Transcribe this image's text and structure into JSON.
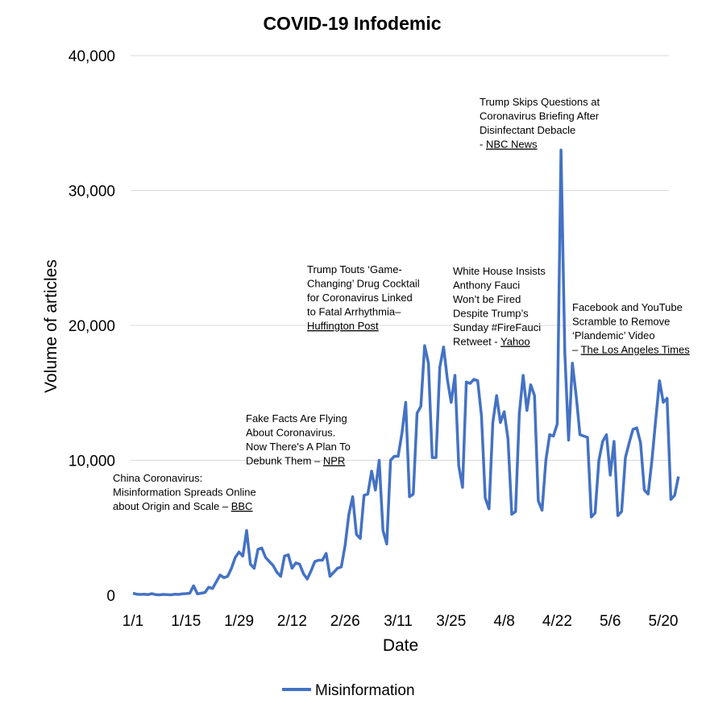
{
  "chart_data": {
    "type": "line",
    "title": "COVID-19 Infodemic",
    "xlabel": "Date",
    "ylabel": "Volume of articles",
    "ylim": [
      0,
      40000
    ],
    "yticks": [
      "0",
      "10,000",
      "20,000",
      "30,000",
      "40,000"
    ],
    "ytick_values": [
      0,
      10000,
      20000,
      30000,
      40000
    ],
    "xticks": [
      "1/1",
      "1/15",
      "1/29",
      "2/12",
      "2/26",
      "3/11",
      "3/25",
      "4/8",
      "4/22",
      "5/6",
      "5/20"
    ],
    "xtick_days": [
      0,
      14,
      28,
      42,
      56,
      70,
      84,
      98,
      112,
      126,
      140
    ],
    "x_start": "1/1",
    "x_end": "5/25",
    "grid": true,
    "legend_position": "bottom",
    "series": [
      {
        "name": "Misinformation",
        "color": "#4472C4",
        "values": [
          150,
          80,
          60,
          70,
          50,
          120,
          40,
          30,
          60,
          40,
          30,
          70,
          60,
          100,
          120,
          150,
          700,
          100,
          150,
          200,
          600,
          500,
          1000,
          1500,
          1300,
          1400,
          2000,
          2800,
          3200,
          2900,
          4800,
          2300,
          2000,
          3400,
          3500,
          2800,
          2500,
          2200,
          1700,
          1400,
          2900,
          3000,
          2000,
          2400,
          2300,
          1600,
          1200,
          1800,
          2500,
          2600,
          2600,
          3100,
          1400,
          1700,
          2000,
          2100,
          3700,
          6000,
          7300,
          4500,
          4200,
          7400,
          7500,
          9200,
          7800,
          10000,
          4800,
          3800,
          10000,
          10300,
          10300,
          12000,
          14300,
          7300,
          7500,
          13500,
          14000,
          18500,
          17200,
          10200,
          10200,
          16900,
          18400,
          16000,
          14300,
          16300,
          9600,
          8000,
          15800,
          15700,
          16000,
          15900,
          13300,
          7200,
          6400,
          12800,
          14800,
          12800,
          13600,
          11600,
          6000,
          6200,
          13500,
          16300,
          13700,
          15600,
          14800,
          7000,
          6300,
          10000,
          11900,
          11800,
          12700,
          33000,
          18000,
          11500,
          17200,
          14800,
          11900,
          11800,
          11700,
          5800,
          6100,
          10000,
          11400,
          11900,
          8900,
          11400,
          5900,
          6200,
          10200,
          11300,
          12300,
          12400,
          11300,
          7800,
          7500,
          10000,
          13000,
          15900,
          14300,
          14600,
          7100,
          7400,
          8800
        ]
      }
    ],
    "annotations": [
      {
        "lines": [
          "China Coronavirus:",
          "Misinformation Spreads Online",
          "about Origin and Scale – "
        ],
        "source": "BBC"
      },
      {
        "lines": [
          "Fake Facts Are Flying",
          "About Coronavirus.",
          "Now There's A Plan To",
          "Debunk Them – "
        ],
        "source": "NPR"
      },
      {
        "lines": [
          "Trump Touts ‘Game-",
          "Changing’ Drug Cocktail",
          "for Coronavirus Linked",
          "to Fatal Arrhythmia–",
          ""
        ],
        "source": "Huffington Post"
      },
      {
        "lines": [
          "White House Insists",
          "Anthony Fauci",
          "Won’t be Fired",
          "Despite Trump’s",
          "Sunday #FireFauci",
          "Retweet - "
        ],
        "source": "Yahoo"
      },
      {
        "lines": [
          "Trump Skips Questions at",
          "Coronavirus Briefing After",
          "Disinfectant Debacle",
          "- "
        ],
        "source": "NBC News"
      },
      {
        "lines": [
          "Facebook and YouTube",
          "Scramble to Remove",
          "‘Plandemic’ Video",
          "– "
        ],
        "source": "The Los Angeles Times"
      }
    ]
  }
}
